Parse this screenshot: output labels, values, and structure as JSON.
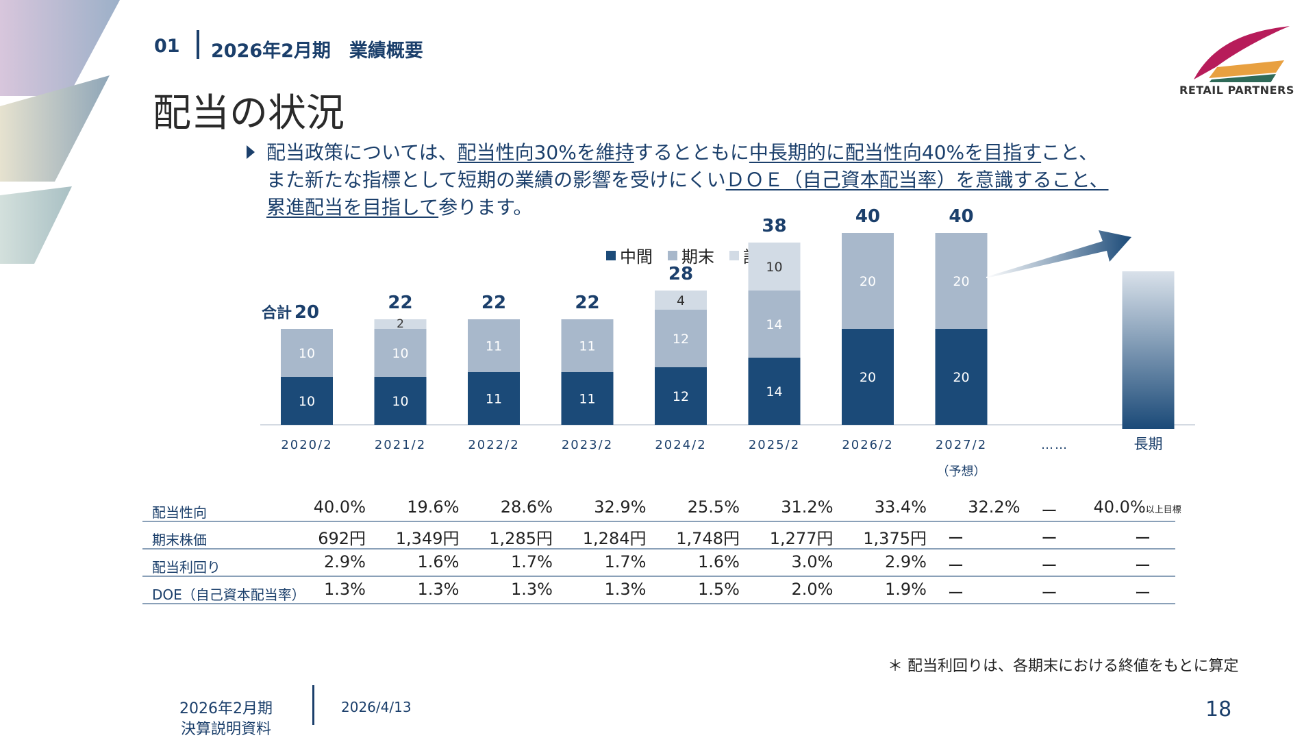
{
  "header": {
    "section_number": "01",
    "section_title": "2026年2月期　業績概要",
    "page_title": "配当の状況",
    "logo_text": "RETAIL PARTNERS"
  },
  "policy": {
    "segments": [
      {
        "text": "配当政策については、",
        "u": false
      },
      {
        "text": "配当性向30%を維持",
        "u": true
      },
      {
        "text": "するとともに",
        "u": false
      },
      {
        "text": "中長期的に配当性向40%を目指す",
        "u": true
      },
      {
        "text": "こと、",
        "u": false
      },
      {
        "br": true
      },
      {
        "text": "また新たな指標として短期の業績の影響を受けにくい",
        "u": false
      },
      {
        "text": "ＤＯＥ（自己資本配当率）を意識すること、",
        "u": true
      },
      {
        "br": true
      },
      {
        "text": "累進配当を目指して",
        "u": true
      },
      {
        "text": "参ります。",
        "u": false
      }
    ]
  },
  "chart_data": {
    "type": "bar",
    "stacked": true,
    "categories": [
      "2020/2",
      "2021/2",
      "2022/2",
      "2023/2",
      "2024/2",
      "2025/2",
      "2026/2",
      "2027/2",
      "……",
      "長期"
    ],
    "category_notes": {
      "2027/2": "（予想）"
    },
    "series": [
      {
        "name": "中間",
        "color": "#1b4a78",
        "values": [
          10,
          10,
          11,
          11,
          12,
          14,
          20,
          20,
          null,
          null
        ]
      },
      {
        "name": "期末",
        "color": "#a8b8cb",
        "values": [
          10,
          10,
          11,
          11,
          12,
          14,
          20,
          20,
          null,
          null
        ]
      },
      {
        "name": "記念",
        "color": "#d2dbe5",
        "values": [
          null,
          2,
          null,
          null,
          4,
          10,
          null,
          null,
          null,
          null
        ]
      }
    ],
    "totals": [
      20,
      22,
      22,
      22,
      28,
      38,
      40,
      40,
      null,
      null
    ],
    "total_prefix": "合計",
    "ylim": [
      0,
      40
    ],
    "legend_position": "top",
    "long_term_bar": {
      "category": "長期",
      "style": "gradient",
      "colors": [
        "#d9e1ea",
        "#1b4a78"
      ],
      "relative_height": 0.46
    },
    "arrow": {
      "direction": "up-right",
      "color": "#1b4a78"
    }
  },
  "table": {
    "rows": [
      {
        "label": "配当性向",
        "values": [
          "40.0%",
          "19.6%",
          "28.6%",
          "32.9%",
          "25.5%",
          "31.2%",
          "33.4%",
          "32.2%",
          "ー",
          "40.0%"
        ],
        "last_suffix": "以上目標"
      },
      {
        "label": "期末株価",
        "values": [
          "692円",
          "1,349円",
          "1,285円",
          "1,284円",
          "1,748円",
          "1,277円",
          "1,375円",
          "ー",
          "ー",
          "ー"
        ]
      },
      {
        "label": "配当利回り",
        "values": [
          "2.9%",
          "1.6%",
          "1.7%",
          "1.7%",
          "1.6%",
          "3.0%",
          "2.9%",
          "ー",
          "ー",
          "ー"
        ]
      },
      {
        "label": "DOE（自己資本配当率）",
        "values": [
          "1.3%",
          "1.3%",
          "1.3%",
          "1.3%",
          "1.5%",
          "2.0%",
          "1.9%",
          "ー",
          "ー",
          "ー"
        ]
      }
    ]
  },
  "footnote": "＊ 配当利回りは、各期末における終値をもとに算定",
  "footer": {
    "period": "2026年2月期",
    "doc_name": "決算説明資料",
    "date": "2026/4/13",
    "page_number": "18"
  },
  "colors": {
    "navy": "#1b3f6b",
    "interim": "#1b4a78",
    "year_end": "#a8b8cb",
    "commemorative": "#d2dbe5"
  }
}
